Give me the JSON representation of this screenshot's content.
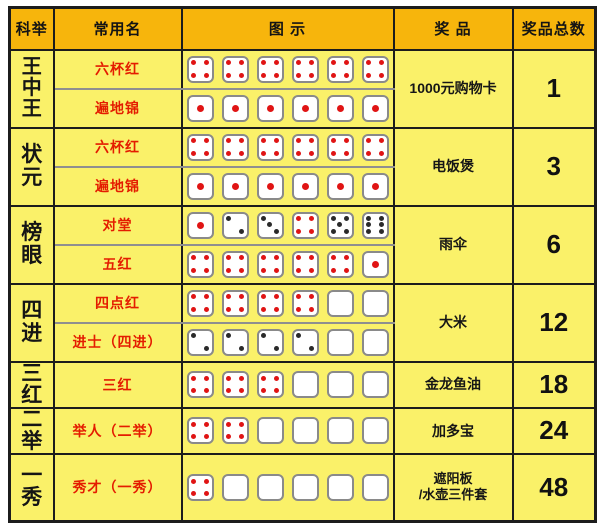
{
  "colors": {
    "header_bg": "#f7b50c",
    "row_bg": "#faf169",
    "grid": "#1c1c1c",
    "divider": "#8f8f8f",
    "name_red": "#e41c00",
    "pip_red": "#e01414",
    "pip_black": "#2a2a2a",
    "die_border": "#8a8a8a"
  },
  "table": {
    "headers": {
      "rank": "科举",
      "name": "常用名",
      "diagram": "图 示",
      "prize": "奖 品",
      "total": "奖品总数"
    },
    "rows": [
      {
        "rank": "王中王",
        "subrows": [
          {
            "name": "六杯红",
            "dice": [
              "4r",
              "4r",
              "4r",
              "4r",
              "4r",
              "4r"
            ]
          },
          {
            "name": "遍地锦",
            "dice": [
              "1r",
              "1r",
              "1r",
              "1r",
              "1r",
              "1r"
            ]
          }
        ],
        "prize": "1000元购物卡",
        "total": "1"
      },
      {
        "rank": "状元",
        "subrows": [
          {
            "name": "六杯红",
            "dice": [
              "4r",
              "4r",
              "4r",
              "4r",
              "4r",
              "4r"
            ]
          },
          {
            "name": "遍地锦",
            "dice": [
              "1r",
              "1r",
              "1r",
              "1r",
              "1r",
              "1r"
            ]
          }
        ],
        "prize": "电饭煲",
        "total": "3"
      },
      {
        "rank": "榜眼",
        "subrows": [
          {
            "name": "对堂",
            "dice": [
              "1r",
              "2k",
              "3k",
              "4r",
              "5k",
              "6k"
            ]
          },
          {
            "name": "五红",
            "dice": [
              "4r",
              "4r",
              "4r",
              "4r",
              "4r",
              "1r"
            ]
          }
        ],
        "prize": "雨伞",
        "total": "6"
      },
      {
        "rank": "四进",
        "subrows": [
          {
            "name": "四点红",
            "dice": [
              "4r",
              "4r",
              "4r",
              "4r",
              "0",
              "0"
            ]
          },
          {
            "name": "进士（四进）",
            "dice": [
              "2k",
              "2k",
              "2k",
              "2k",
              "0",
              "0"
            ]
          }
        ],
        "prize": "大米",
        "total": "12"
      },
      {
        "rank": "三红",
        "subrows": [
          {
            "name": "三红",
            "dice": [
              "4r",
              "4r",
              "4r",
              "0",
              "0",
              "0"
            ]
          }
        ],
        "prize": "金龙鱼油",
        "total": "18"
      },
      {
        "rank": "二举",
        "subrows": [
          {
            "name": "举人（二举）",
            "dice": [
              "4r",
              "4r",
              "0",
              "0",
              "0",
              "0"
            ]
          }
        ],
        "prize": "加多宝",
        "total": "24"
      },
      {
        "rank": "一秀",
        "subrows": [
          {
            "name": "秀才（一秀）",
            "dice": [
              "4r",
              "0",
              "0",
              "0",
              "0",
              "0"
            ]
          }
        ],
        "prize": "遮阳板\n/水壶三件套",
        "total": "48"
      }
    ]
  }
}
